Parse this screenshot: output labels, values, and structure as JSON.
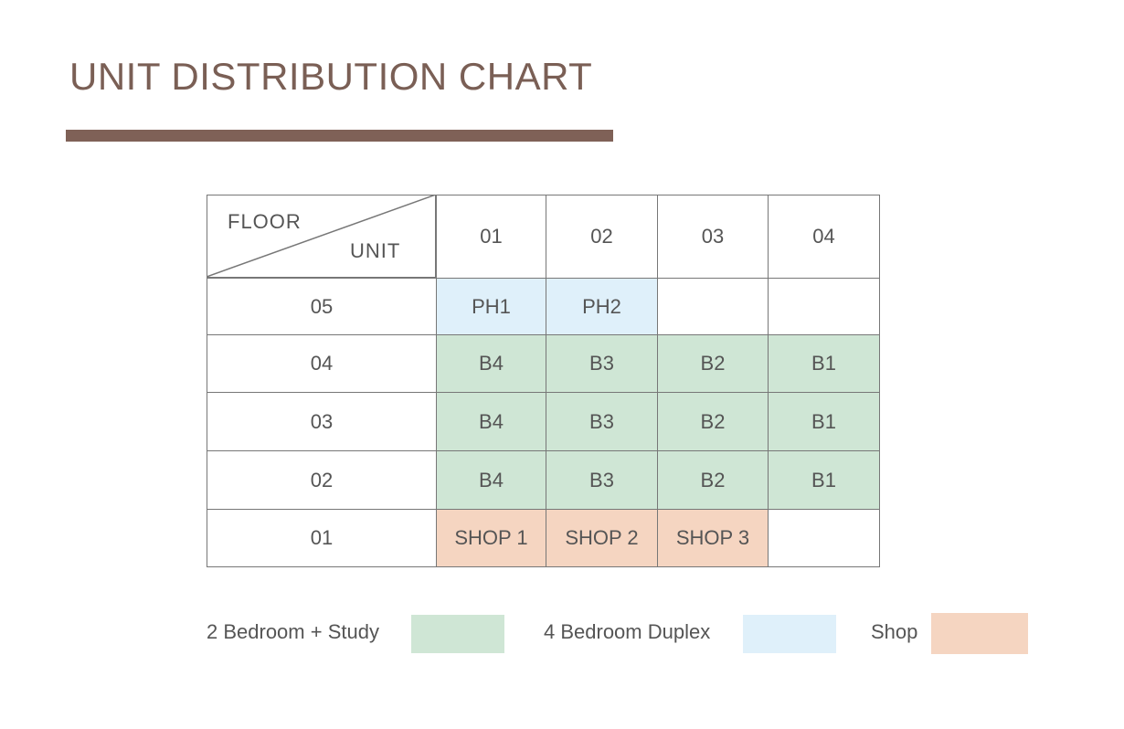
{
  "header": {
    "title": "UNIT DISTRIBUTION CHART"
  },
  "table": {
    "corner": {
      "row_label": "FLOOR",
      "column_label": "UNIT"
    },
    "columns": [
      "01",
      "02",
      "03",
      "04"
    ],
    "rows": [
      {
        "floor": "05",
        "cells": [
          {
            "label": "PH1",
            "color": "#dff0fa"
          },
          {
            "label": "PH2",
            "color": "#dff0fa"
          },
          null,
          null
        ]
      },
      {
        "floor": "04",
        "cells": [
          {
            "label": "B4",
            "color": "#cfe6d5"
          },
          {
            "label": "B3",
            "color": "#cfe6d5"
          },
          {
            "label": "B2",
            "color": "#cfe6d5"
          },
          {
            "label": "B1",
            "color": "#cfe6d5"
          }
        ]
      },
      {
        "floor": "03",
        "cells": [
          {
            "label": "B4",
            "color": "#cfe6d5"
          },
          {
            "label": "B3",
            "color": "#cfe6d5"
          },
          {
            "label": "B2",
            "color": "#cfe6d5"
          },
          {
            "label": "B1",
            "color": "#cfe6d5"
          }
        ]
      },
      {
        "floor": "02",
        "cells": [
          {
            "label": "B4",
            "color": "#cfe6d5"
          },
          {
            "label": "B3",
            "color": "#cfe6d5"
          },
          {
            "label": "B2",
            "color": "#cfe6d5"
          },
          {
            "label": "B1",
            "color": "#cfe6d5"
          }
        ]
      },
      {
        "floor": "01",
        "cells": [
          {
            "label": "SHOP 1",
            "color": "#f5d5c1"
          },
          {
            "label": "SHOP 2",
            "color": "#f5d5c1"
          },
          {
            "label": "SHOP 3",
            "color": "#f5d5c1"
          },
          null
        ]
      }
    ]
  },
  "legend": [
    {
      "label": "2 Bedroom + Study",
      "color": "#cfe6d5"
    },
    {
      "label": "4 Bedroom Duplex",
      "color": "#dff0fa"
    },
    {
      "label": "Shop",
      "color": "#f5d5c1"
    }
  ]
}
